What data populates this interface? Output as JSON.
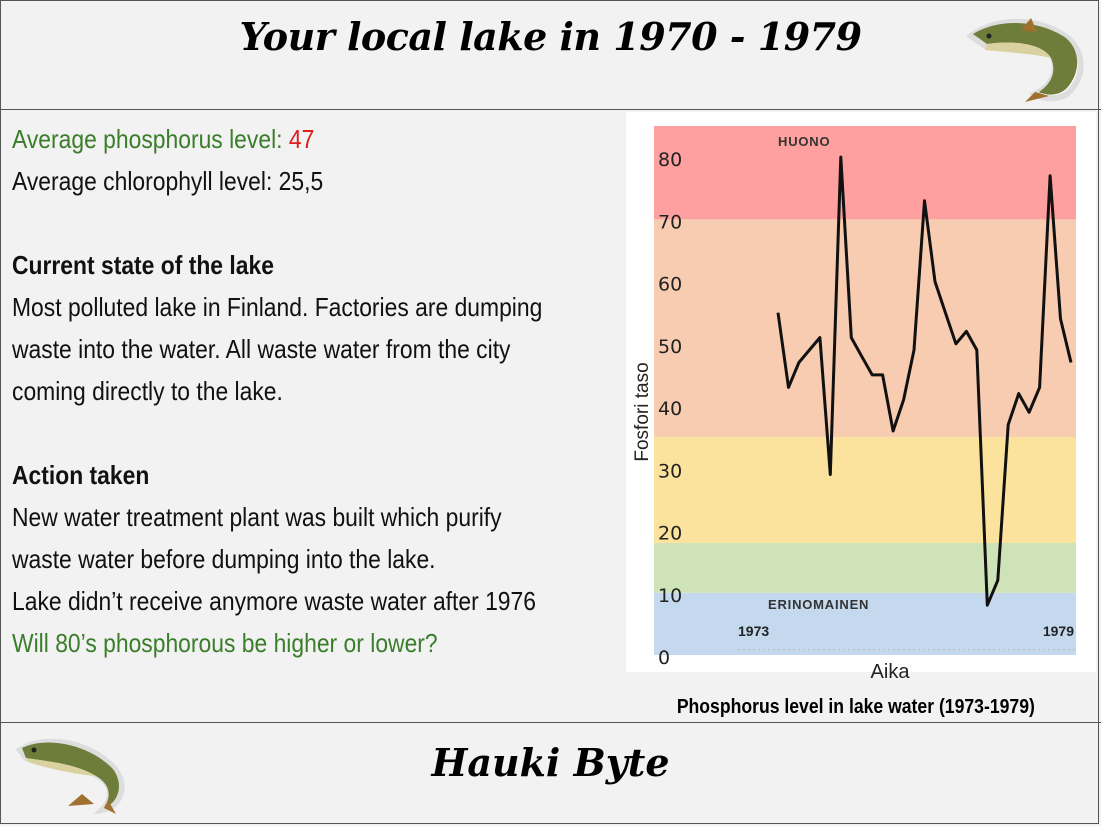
{
  "header": {
    "title": "Your local lake in 1970 - 1979"
  },
  "stats": {
    "phosphorus_label": "Average phosphorus level:",
    "phosphorus_value": "47",
    "chlorophyll_label": "Average chlorophyll level:",
    "chlorophyll_value": "25,5"
  },
  "current_state": {
    "heading": "Current state of the lake",
    "lines": [
      "Most polluted lake in Finland. Factories are dumping",
      "waste into the water. All waste water from the city",
      "coming directly to the lake."
    ]
  },
  "action": {
    "heading": "Action taken",
    "lines": [
      "New water treatment plant was built which purify",
      "waste water before dumping into the lake.",
      "Lake didn’t receive anymore waste water after 1976"
    ],
    "question": "Will 80’s phosphorous be higher or lower?"
  },
  "chart_data": {
    "type": "line",
    "title": "Phosphorus level in lake water (1973-1979)",
    "xlabel": "Aika",
    "ylabel": "Fosfori taso",
    "ylim": [
      0,
      85
    ],
    "yticks": [
      0,
      10,
      20,
      30,
      40,
      50,
      60,
      70,
      80
    ],
    "x_tick_labels": [
      "1973",
      "1979"
    ],
    "zones": [
      {
        "from": 0,
        "to": 10,
        "label": "ERINOMAINEN",
        "color": "#c4d9ee"
      },
      {
        "from": 10,
        "to": 18,
        "label": "",
        "color": "#cfe3b8"
      },
      {
        "from": 18,
        "to": 35,
        "label": "",
        "color": "#fbe39d"
      },
      {
        "from": 35,
        "to": 70,
        "label": "",
        "color": "#f7ccb1"
      },
      {
        "from": 70,
        "to": 85,
        "label": "HUONO",
        "color": "#fea0a0"
      }
    ],
    "series": [
      {
        "values": [
          55,
          43,
          47,
          49,
          51,
          29,
          80,
          51,
          48,
          45,
          45,
          36,
          41,
          49,
          73,
          60,
          55,
          50,
          52,
          49,
          8,
          12,
          37,
          42,
          39,
          43,
          77,
          54,
          47
        ],
        "color": "#111111"
      }
    ],
    "grid": false
  },
  "footer": {
    "brand": "Hauki Byte"
  }
}
